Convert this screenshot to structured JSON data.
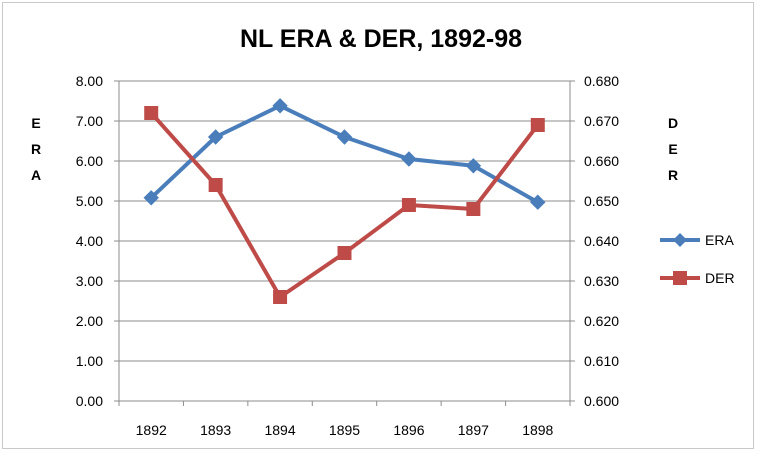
{
  "chart_data": {
    "type": "line",
    "title": "NL ERA & DER, 1892-98",
    "categories": [
      "1892",
      "1893",
      "1894",
      "1895",
      "1896",
      "1897",
      "1898"
    ],
    "y_left": {
      "label": "ERA",
      "ylim": [
        0,
        8
      ],
      "ticks": [
        "0.00",
        "1.00",
        "2.00",
        "3.00",
        "4.00",
        "5.00",
        "6.00",
        "7.00",
        "8.00"
      ]
    },
    "y_right": {
      "label": "DER",
      "ylim": [
        0.6,
        0.68
      ],
      "ticks": [
        "0.600",
        "0.610",
        "0.620",
        "0.630",
        "0.640",
        "0.650",
        "0.660",
        "0.670",
        "0.680"
      ]
    },
    "grid": "horizontal",
    "legend_position": "right",
    "series": [
      {
        "name": "ERA",
        "axis": "left",
        "color": "#4a7ebb",
        "marker": "diamond",
        "values": [
          5.08,
          6.6,
          7.38,
          6.6,
          6.05,
          5.88,
          4.97
        ]
      },
      {
        "name": "DER",
        "axis": "right",
        "color": "#be4b48",
        "marker": "square",
        "values": [
          0.672,
          0.654,
          0.626,
          0.637,
          0.649,
          0.648,
          0.669
        ]
      }
    ]
  }
}
